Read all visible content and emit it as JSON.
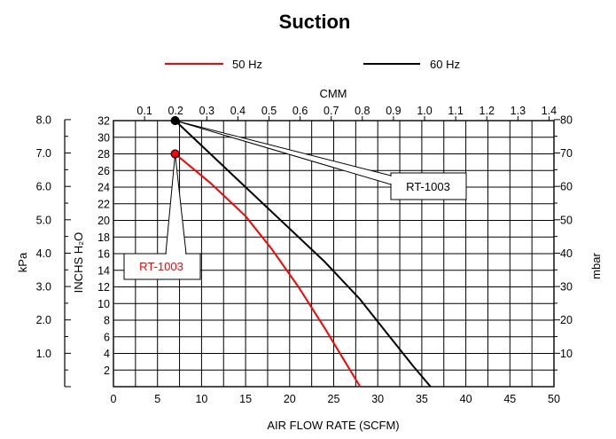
{
  "chart_data": {
    "type": "line",
    "title": "Suction",
    "xlabel": "AIR FLOW RATE (SCFM)",
    "x_top_label": "CMM",
    "ylabel_left_outer": "kPa",
    "ylabel_left_inner": "INCHS H₂O",
    "ylabel_right": "mbar",
    "grid": true,
    "legend_position": "top-center",
    "xlim": [
      0,
      50
    ],
    "x_ticks": [
      "0",
      "5",
      "10",
      "15",
      "20",
      "25",
      "30",
      "35",
      "40",
      "45",
      "50"
    ],
    "top_ticks": [
      "0.1",
      "0.2",
      "0.3",
      "0.4",
      "0.5",
      "0.6",
      "0.7",
      "0.8",
      "0.9",
      "1.0",
      "1.1",
      "1.2",
      "1.3",
      "1.4"
    ],
    "ylim": [
      0,
      32
    ],
    "y_ticks": [
      "2",
      "4",
      "6",
      "8",
      "10",
      "12",
      "14",
      "16",
      "18",
      "20",
      "22",
      "24",
      "26",
      "28",
      "30",
      "32"
    ],
    "kpa_ticks": [
      "1.0",
      "2.0",
      "3.0",
      "4.0",
      "5.0",
      "6.0",
      "7.0",
      "8.0"
    ],
    "mbar_ticks": [
      "10",
      "20",
      "30",
      "40",
      "50",
      "60",
      "70",
      "80"
    ],
    "series": [
      {
        "name": "50 Hz",
        "color": "#ff0000",
        "points": [
          [
            7,
            28
          ],
          [
            11,
            24.5
          ],
          [
            15,
            20.5
          ],
          [
            18,
            16.5
          ],
          [
            21,
            12
          ],
          [
            24,
            7
          ],
          [
            26,
            3.5
          ],
          [
            28,
            0
          ]
        ],
        "callout": "RT-1003"
      },
      {
        "name": "60 Hz",
        "color": "#000000",
        "points": [
          [
            7,
            32
          ],
          [
            12,
            27
          ],
          [
            16,
            23
          ],
          [
            20,
            19
          ],
          [
            24,
            15
          ],
          [
            28,
            10.5
          ],
          [
            31,
            6.5
          ],
          [
            34,
            2.5
          ],
          [
            36,
            0
          ]
        ],
        "callout": "RT-1003"
      }
    ]
  }
}
